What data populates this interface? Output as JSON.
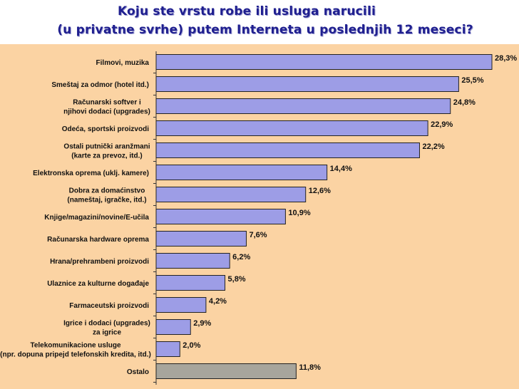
{
  "title_line1": "Koju ste vrstu robe ili usluga narucili",
  "title_line2": "(u privatne  svrhe) putem Interneta u poslednjih 12 meseci?",
  "colors": {
    "plot_background": "#fbd3a3",
    "bar_fill": "#9d9de6",
    "bar_fill_last": "#a7a59c",
    "bar_stroke": "#222222",
    "title": "#1f1f8f"
  },
  "chart_data": {
    "type": "bar",
    "orientation": "horizontal",
    "title": "Koju ste vrstu robe ili usluga narucili (u privatne  svrhe) putem Interneta u poslednjih 12 meseci?",
    "categories": [
      [
        "Filmovi, muzika"
      ],
      [
        "Smeštaj za odmor (hotel itd.)"
      ],
      [
        "Računarski softver i",
        "njihovi dodaci (upgrades)"
      ],
      [
        "Odeća, sportski proizvodi"
      ],
      [
        "Ostali putnički aranžmani",
        "(karte za prevoz, itd.)"
      ],
      [
        "Elektronska oprema (uklj. kamere)"
      ],
      [
        "Dobra za domaćinstvo",
        "(nameštaj, igračke, itd.)"
      ],
      [
        "Knjige/magazini/novine/E-učila"
      ],
      [
        "Računarska hardware oprema"
      ],
      [
        "Hrana/prehrambeni proizvodi"
      ],
      [
        "Ulaznice za kulturne događaje"
      ],
      [
        "Farmaceutski proizvodi"
      ],
      [
        "Igrice i dodaci (upgrades)",
        "za igrice"
      ],
      [
        "Telekomunikacione usluge",
        "(npr. dopuna pripejd telefonskih kredita, itd.)"
      ],
      [
        "Ostalo"
      ]
    ],
    "values": [
      28.3,
      25.5,
      24.8,
      22.9,
      22.2,
      14.4,
      12.6,
      10.9,
      7.6,
      6.2,
      5.8,
      4.2,
      2.9,
      2.0,
      11.8
    ],
    "value_labels": [
      "28,3%",
      "25,5%",
      "24,8%",
      "22,9%",
      "22,2%",
      "14,4%",
      "12,6%",
      "10,9%",
      "7,6%",
      "6,2%",
      "5,8%",
      "4,2%",
      "2,9%",
      "2,0%",
      "11,8%"
    ],
    "xlim": [
      0,
      28.3
    ],
    "grid": false,
    "legend": "none"
  }
}
